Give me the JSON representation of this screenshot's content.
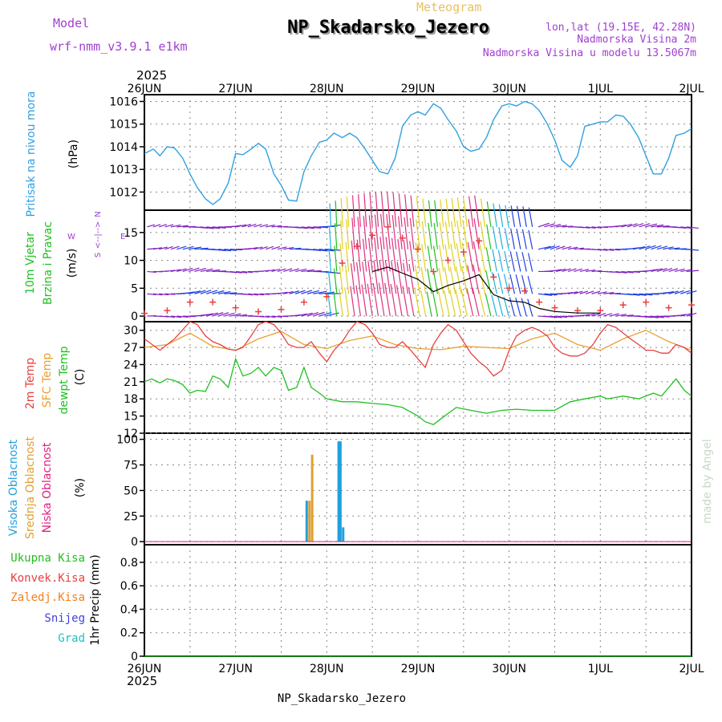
{
  "header": {
    "model_label": "Model",
    "model_name": "wrf-nmm_v3.9.1  e1km",
    "meteogram_label": "Meteogram",
    "station": "NP_Skadarsko_Jezero",
    "lonlat": "lon,lat (19.15E, 42.28N)",
    "altitude": "Nadmorska Visina 2m",
    "model_altitude": "Nadmorska Visina u modelu 13.5067m"
  },
  "footer": {
    "station": "NP_Skadarsko_Jezero",
    "credit": "made by Angel"
  },
  "time_axis": {
    "year": "2025",
    "ticks": [
      "26JUN",
      "27JUN",
      "28JUN",
      "29JUN",
      "30JUN",
      "1JUL",
      "2JUL"
    ]
  },
  "panels": {
    "pressure": {
      "title": "Pritisak na nivou mora",
      "unit": "(hPa)",
      "ticks": [
        "1012",
        "1013",
        "1014",
        "1015",
        "1016"
      ]
    },
    "wind": {
      "title_line1": "10m Vjetar",
      "title_line2": "Brzina i Pravac",
      "unit": "(m/s)",
      "compass_n": "N",
      "compass_s": "S",
      "compass_w": "W",
      "compass_e": "E",
      "compass_arrows": "<--|-->",
      "ticks": [
        "0",
        "5",
        "10",
        "15"
      ]
    },
    "temperature": {
      "label_2m": "2m Temp",
      "label_sfc": "SFC Temp",
      "label_dew": "dewpt Temp",
      "unit": "(C)",
      "ticks": [
        "12",
        "15",
        "18",
        "21",
        "24",
        "27",
        "30"
      ]
    },
    "cloud": {
      "label_high": "Visoka Oblacnost",
      "label_mid": "Srednja Oblacnost",
      "label_low": "Niska Oblacnost",
      "unit": "(%)",
      "ticks": [
        "0",
        "25",
        "50",
        "75",
        "100"
      ]
    },
    "precip": {
      "label_total": "Ukupna Kisa",
      "label_conv": "Konvek.Kisa",
      "label_frozen": "Zaledj.Kisa",
      "label_snow": "Snijeg",
      "label_hail": "Grad",
      "unit": "1hr Precip (mm)",
      "ticks": [
        "0",
        "0.2",
        "0.4",
        "0.6",
        "0.8"
      ]
    }
  },
  "colors": {
    "model": "#a040d0",
    "meteogram": "#e8c060",
    "header_right": "#a040d0",
    "pressure": "#30a0e0",
    "wind_title": "#20c020",
    "temp_2m": "#e84040",
    "temp_sfc": "#e8a030",
    "temp_dew": "#20c020",
    "cloud_high": "#20a0e0",
    "cloud_mid": "#e0a030",
    "cloud_low": "#e02080",
    "precip_total": "#20c020",
    "precip_conv": "#e84040",
    "precip_frozen": "#f08020",
    "precip_snow": "#4040e0",
    "precip_hail": "#20c0c0",
    "credit": "#c8d8c8"
  },
  "chart_data": [
    {
      "type": "line",
      "name": "pressure",
      "ylim": [
        1011.2,
        1016.3
      ],
      "xlim_days": [
        0,
        6
      ],
      "x": [
        0,
        0.1,
        0.17,
        0.25,
        0.33,
        0.42,
        0.5,
        0.58,
        0.67,
        0.75,
        0.83,
        0.92,
        1.0,
        1.08,
        1.17,
        1.25,
        1.33,
        1.42,
        1.5,
        1.58,
        1.67,
        1.75,
        1.83,
        1.92,
        2.0,
        2.08,
        2.17,
        2.25,
        2.33,
        2.42,
        2.5,
        2.58,
        2.67,
        2.75,
        2.83,
        2.92,
        3.0,
        3.08,
        3.17,
        3.25,
        3.33,
        3.42,
        3.5,
        3.58,
        3.67,
        3.75,
        3.83,
        3.92,
        4.0,
        4.08,
        4.17,
        4.25,
        4.33,
        4.42,
        4.5,
        4.58,
        4.67,
        4.75,
        4.83,
        4.92,
        5.0,
        5.08,
        5.17,
        5.25,
        5.33,
        5.42,
        5.5,
        5.58,
        5.67,
        5.75,
        5.83,
        5.92,
        6.0
      ],
      "y": [
        1013.7,
        1013.9,
        1013.6,
        1014.0,
        1013.95,
        1013.5,
        1012.8,
        1012.2,
        1011.7,
        1011.45,
        1011.7,
        1012.4,
        1013.7,
        1013.65,
        1013.9,
        1014.15,
        1013.9,
        1012.8,
        1012.3,
        1011.65,
        1011.6,
        1012.9,
        1013.6,
        1014.2,
        1014.3,
        1014.6,
        1014.4,
        1014.6,
        1014.4,
        1013.9,
        1013.4,
        1012.9,
        1012.8,
        1013.5,
        1014.9,
        1015.4,
        1015.55,
        1015.4,
        1015.9,
        1015.7,
        1015.2,
        1014.7,
        1014.0,
        1013.8,
        1013.9,
        1014.4,
        1015.2,
        1015.8,
        1015.9,
        1015.8,
        1016.0,
        1015.9,
        1015.6,
        1015.0,
        1014.3,
        1013.4,
        1013.1,
        1013.6,
        1014.9,
        1015.0,
        1015.1,
        1015.1,
        1015.4,
        1015.35,
        1015.0,
        1014.4,
        1013.6,
        1012.8,
        1012.8,
        1013.5,
        1014.5,
        1014.6,
        1014.8
      ]
    },
    {
      "type": "line",
      "name": "2m Temp",
      "ylim": [
        12,
        31.5
      ],
      "xlim_days": [
        0,
        6
      ],
      "x": [
        0,
        0.17,
        0.33,
        0.5,
        0.58,
        0.67,
        0.75,
        0.83,
        0.92,
        1.0,
        1.08,
        1.17,
        1.25,
        1.33,
        1.42,
        1.5,
        1.58,
        1.67,
        1.75,
        1.83,
        1.92,
        2.0,
        2.08,
        2.17,
        2.25,
        2.33,
        2.42,
        2.5,
        2.58,
        2.67,
        2.75,
        2.83,
        2.92,
        3.0,
        3.08,
        3.17,
        3.25,
        3.33,
        3.42,
        3.5,
        3.58,
        3.67,
        3.75,
        3.83,
        3.92,
        4.0,
        4.08,
        4.17,
        4.25,
        4.33,
        4.42,
        4.5,
        4.58,
        4.67,
        4.75,
        4.83,
        4.92,
        5.0,
        5.08,
        5.17,
        5.25,
        5.33,
        5.42,
        5.5,
        5.58,
        5.67,
        5.75,
        5.83,
        5.92,
        6.0
      ],
      "y": [
        28.5,
        26.5,
        28.5,
        31.5,
        31.0,
        29.0,
        28.0,
        27.5,
        26.7,
        26.5,
        27.0,
        29.0,
        31.0,
        31.5,
        31.0,
        29.5,
        27.5,
        27.0,
        27.0,
        28.0,
        26.0,
        24.5,
        26.5,
        28.0,
        30.0,
        31.5,
        31.0,
        29.5,
        27.5,
        27.0,
        27.0,
        28.0,
        26.5,
        25.0,
        23.5,
        27.5,
        29.5,
        31.0,
        30.0,
        28.0,
        26.0,
        24.5,
        23.5,
        22.0,
        23.0,
        26.5,
        29.0,
        30.0,
        30.5,
        30.0,
        29.0,
        27.0,
        26.0,
        25.5,
        25.5,
        26.0,
        27.5,
        29.5,
        31.0,
        30.5,
        29.5,
        28.5,
        27.5,
        26.5,
        26.5,
        26.0,
        26.0,
        27.5,
        27.0,
        26.0
      ]
    },
    {
      "type": "line",
      "name": "SFC Temp",
      "ylim": [
        12,
        31.5
      ],
      "xlim_days": [
        0,
        6
      ],
      "x": [
        0,
        0.25,
        0.5,
        0.75,
        1.0,
        1.25,
        1.5,
        1.75,
        2.0,
        2.25,
        2.5,
        2.75,
        3.0,
        3.25,
        3.5,
        3.75,
        4.0,
        4.25,
        4.5,
        4.75,
        5.0,
        5.25,
        5.5,
        5.75,
        6.0
      ],
      "y": [
        27.0,
        27.5,
        29.5,
        27.2,
        26.5,
        28.5,
        29.8,
        27.5,
        26.8,
        28.2,
        29.0,
        27.5,
        26.8,
        26.6,
        27.2,
        27.0,
        26.8,
        28.5,
        29.5,
        27.5,
        26.5,
        28.5,
        30.0,
        28.0,
        26.5
      ]
    },
    {
      "type": "line",
      "name": "dewpt Temp",
      "ylim": [
        12,
        31.5
      ],
      "xlim_days": [
        0,
        6
      ],
      "x": [
        0,
        0.08,
        0.17,
        0.25,
        0.33,
        0.42,
        0.5,
        0.58,
        0.67,
        0.75,
        0.83,
        0.92,
        1.0,
        1.08,
        1.17,
        1.25,
        1.33,
        1.42,
        1.5,
        1.58,
        1.67,
        1.75,
        1.83,
        1.92,
        2.0,
        2.17,
        2.33,
        2.5,
        2.67,
        2.83,
        3.0,
        3.08,
        3.17,
        3.25,
        3.42,
        3.58,
        3.75,
        3.92,
        4.08,
        4.25,
        4.5,
        4.67,
        4.83,
        5.0,
        5.08,
        5.25,
        5.42,
        5.58,
        5.67,
        5.75,
        5.83,
        5.92,
        6.0
      ],
      "y": [
        21.0,
        21.5,
        20.8,
        21.5,
        21.2,
        20.5,
        19.0,
        19.5,
        19.3,
        22.0,
        21.5,
        20.0,
        25.0,
        22.0,
        22.5,
        23.5,
        22.0,
        23.5,
        23.0,
        19.5,
        20.0,
        23.5,
        20.0,
        19.0,
        18.0,
        17.5,
        17.5,
        17.2,
        17.0,
        16.5,
        15.0,
        14.0,
        13.5,
        14.5,
        16.5,
        16.0,
        15.5,
        16.0,
        16.2,
        16.0,
        16.0,
        17.5,
        18.0,
        18.5,
        18.0,
        18.5,
        18.0,
        19.0,
        18.5,
        20.0,
        21.5,
        19.5,
        18.5
      ]
    },
    {
      "type": "bar",
      "name": "cloud cover",
      "ylim": [
        0,
        100
      ],
      "xlim_days": [
        0,
        6
      ],
      "series": [
        {
          "name": "Visoka Oblacnost",
          "x": [
            1.78,
            2.13,
            2.15,
            2.18
          ],
          "values": [
            40,
            98,
            98,
            14
          ]
        },
        {
          "name": "Srednja Oblacnost",
          "x": [
            1.81,
            1.84
          ],
          "values": [
            40,
            85
          ]
        },
        {
          "name": "Niska Oblacnost",
          "x": [],
          "values": []
        }
      ]
    },
    {
      "type": "line",
      "name": "1hr Precip",
      "ylim": [
        0,
        0.95
      ],
      "xlim_days": [
        0,
        6
      ],
      "series": [
        {
          "name": "Ukupna Kisa",
          "x": [
            0,
            6
          ],
          "values": [
            0,
            0
          ]
        }
      ]
    },
    {
      "type": "scatter",
      "name": "10m wind speed",
      "ylim": [
        -1,
        19
      ],
      "xlim_days": [
        0,
        6
      ],
      "x": [
        0,
        0.25,
        0.5,
        0.75,
        1.0,
        1.25,
        1.5,
        1.75,
        2.0,
        2.17,
        2.33,
        2.5,
        2.67,
        2.83,
        3.0,
        3.17,
        3.33,
        3.5,
        3.67,
        3.83,
        4.0,
        4.17,
        4.33,
        4.5,
        4.75,
        5.0,
        5.25,
        5.5,
        5.75,
        6.0
      ],
      "y": [
        0.5,
        1.0,
        2.5,
        2.5,
        1.5,
        0.8,
        1.2,
        2.5,
        3.5,
        9.5,
        12.5,
        14.5,
        16.0,
        14.0,
        12.0,
        8.0,
        10.0,
        11.5,
        13.5,
        7.0,
        5.0,
        4.5,
        2.5,
        1.5,
        1.0,
        1.0,
        2.0,
        2.5,
        1.5,
        2.0
      ]
    }
  ]
}
